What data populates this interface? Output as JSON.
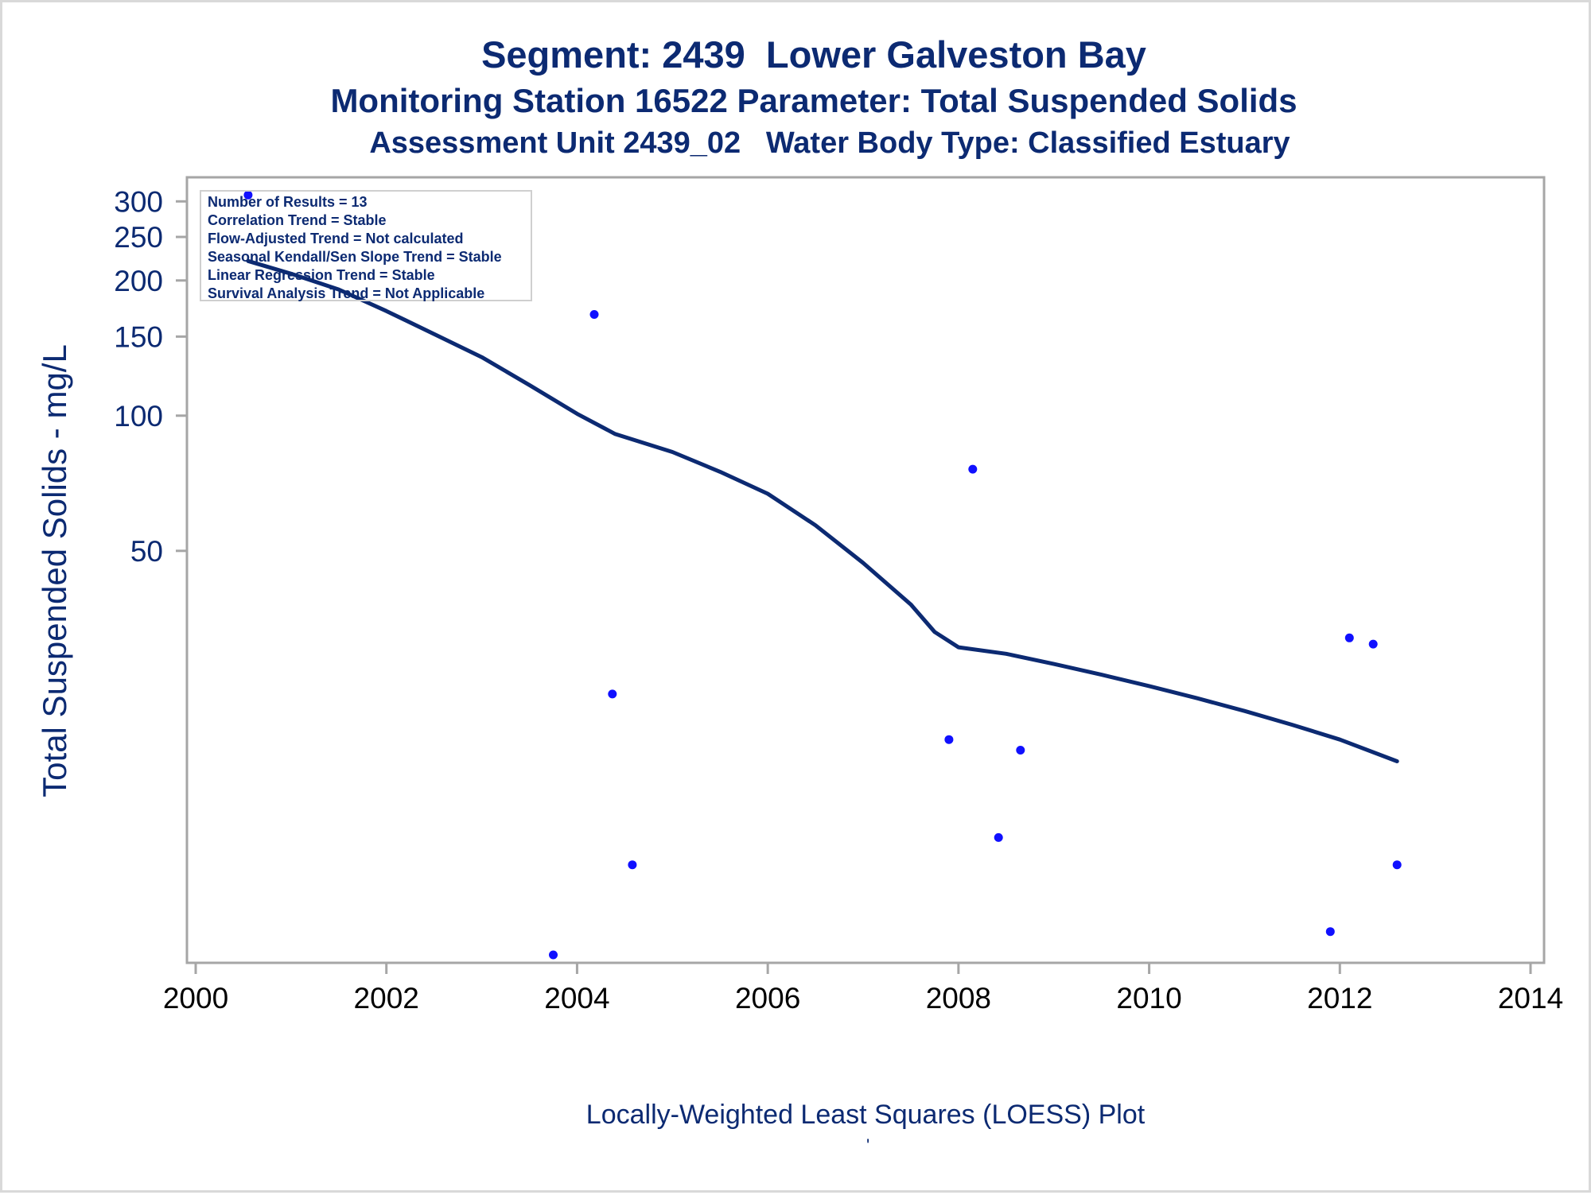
{
  "chart_data": {
    "type": "scatter",
    "title": "Segment: 2439  Lower Galveston Bay",
    "subtitles": [
      "Monitoring Station 16522 Parameter: Total Suspended Solids",
      "Assessment Unit 2439_02   Water Body Type: Classified Estuary"
    ],
    "xlabel": "",
    "ylabel": "Total Suspended Solids - mg/L",
    "footnote": "Locally-Weighted Least Squares (LOESS) Plot",
    "footnote_mark": "'",
    "y_scale": "log",
    "xlim": [
      2000,
      2014
    ],
    "ylim": [
      6.3,
      318
    ],
    "x_ticks": [
      2000,
      2002,
      2004,
      2006,
      2008,
      2010,
      2012,
      2014
    ],
    "y_ticks": [
      50,
      100,
      150,
      200,
      250,
      300
    ],
    "grid": false,
    "stats_box": {
      "position": "top-left",
      "lines": [
        "Number of Results = 13",
        "Correlation Trend = Stable",
        "Flow-Adjusted Trend = Not calculated",
        "Seasonal Kendall/Sen Slope Trend = Stable",
        "Linear Regression Trend = Stable",
        "Survival Analysis Trend = Not Applicable"
      ]
    },
    "series": [
      {
        "type": "scatter",
        "color": "#1010ff",
        "points": [
          {
            "x": 2000.55,
            "y": 310
          },
          {
            "x": 2003.75,
            "y": 6.3
          },
          {
            "x": 2004.18,
            "y": 168
          },
          {
            "x": 2004.37,
            "y": 24
          },
          {
            "x": 2004.58,
            "y": 10
          },
          {
            "x": 2007.9,
            "y": 19
          },
          {
            "x": 2008.15,
            "y": 76
          },
          {
            "x": 2008.42,
            "y": 11.5
          },
          {
            "x": 2008.65,
            "y": 18
          },
          {
            "x": 2011.9,
            "y": 7.1
          },
          {
            "x": 2012.1,
            "y": 32
          },
          {
            "x": 2012.35,
            "y": 31
          },
          {
            "x": 2012.6,
            "y": 10
          }
        ]
      },
      {
        "type": "line",
        "color": "#0c2a72",
        "points": [
          {
            "x": 2000.55,
            "y": 221
          },
          {
            "x": 2001.0,
            "y": 207
          },
          {
            "x": 2001.5,
            "y": 191
          },
          {
            "x": 2002.0,
            "y": 171
          },
          {
            "x": 2002.5,
            "y": 152
          },
          {
            "x": 2003.0,
            "y": 135
          },
          {
            "x": 2003.5,
            "y": 117
          },
          {
            "x": 2004.0,
            "y": 101
          },
          {
            "x": 2004.4,
            "y": 91
          },
          {
            "x": 2005.0,
            "y": 83
          },
          {
            "x": 2005.5,
            "y": 75
          },
          {
            "x": 2006.0,
            "y": 67
          },
          {
            "x": 2006.5,
            "y": 57
          },
          {
            "x": 2007.0,
            "y": 47
          },
          {
            "x": 2007.5,
            "y": 38
          },
          {
            "x": 2007.75,
            "y": 33
          },
          {
            "x": 2008.0,
            "y": 30.5
          },
          {
            "x": 2008.5,
            "y": 29.5
          },
          {
            "x": 2009.0,
            "y": 28
          },
          {
            "x": 2009.5,
            "y": 26.5
          },
          {
            "x": 2010.0,
            "y": 25
          },
          {
            "x": 2010.5,
            "y": 23.5
          },
          {
            "x": 2011.0,
            "y": 22
          },
          {
            "x": 2011.5,
            "y": 20.5
          },
          {
            "x": 2012.0,
            "y": 19
          },
          {
            "x": 2012.6,
            "y": 17
          }
        ]
      }
    ]
  }
}
